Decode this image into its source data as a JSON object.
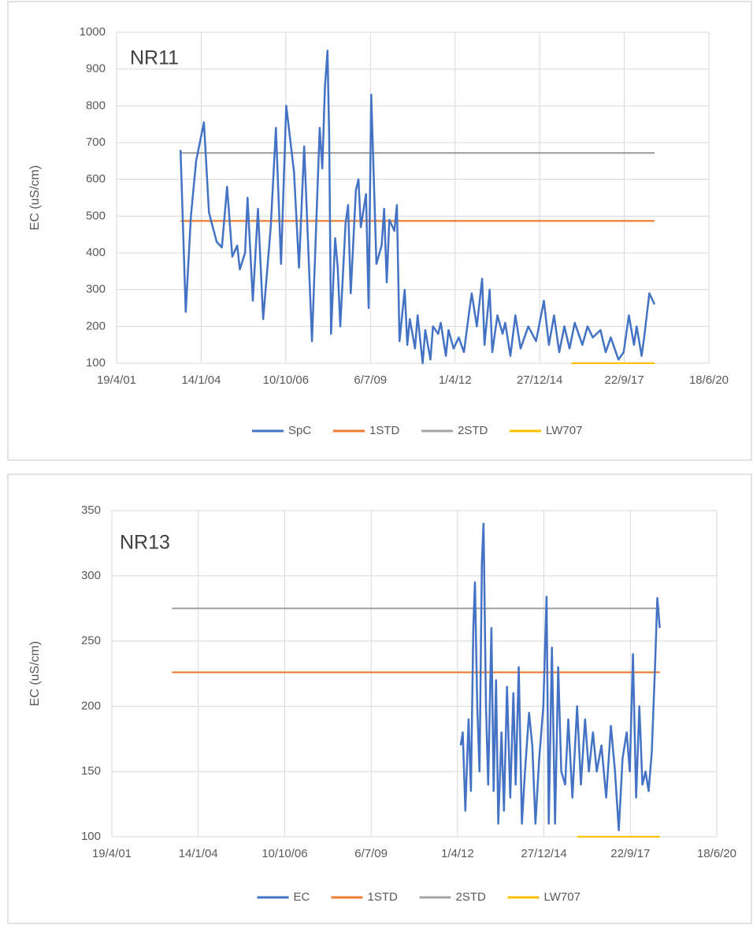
{
  "chart_data": [
    {
      "type": "line",
      "title": "NR11",
      "y_label": "EC (uS/cm)",
      "xlim": [
        "2001-04-19",
        "2020-06-18"
      ],
      "xticks": [
        {
          "value": "2001-04-19",
          "label": "19/4/01"
        },
        {
          "value": "2004-01-14",
          "label": "14/1/04"
        },
        {
          "value": "2006-10-10",
          "label": "10/10/06"
        },
        {
          "value": "2009-07-06",
          "label": "6/7/09"
        },
        {
          "value": "2012-04-01",
          "label": "1/4/12"
        },
        {
          "value": "2014-12-27",
          "label": "27/12/14"
        },
        {
          "value": "2017-09-22",
          "label": "22/9/17"
        },
        {
          "value": "2020-06-18",
          "label": "18/6/20"
        }
      ],
      "ylim": [
        100,
        1000
      ],
      "yticks": [
        100,
        200,
        300,
        400,
        500,
        600,
        700,
        800,
        900,
        1000
      ],
      "grid": true,
      "legend": "bottom",
      "series": [
        {
          "name": "SpC",
          "color": "#4472c4",
          "x": [
            "2003-05-15",
            "2003-07-15",
            "2003-09-15",
            "2003-11-15",
            "2004-02-15",
            "2004-04-15",
            "2004-07-15",
            "2004-09-15",
            "2004-11-15",
            "2005-01-15",
            "2005-03-15",
            "2005-04-15",
            "2005-06-15",
            "2005-07-15",
            "2005-09-15",
            "2005-11-15",
            "2006-01-15",
            "2006-04-15",
            "2006-06-15",
            "2006-08-15",
            "2006-10-15",
            "2007-01-15",
            "2007-03-15",
            "2007-05-15",
            "2007-08-15",
            "2007-11-15",
            "2007-12-15",
            "2008-01-15",
            "2008-02-15",
            "2008-03-05",
            "2008-03-28",
            "2008-05-15",
            "2008-06-15",
            "2008-07-15",
            "2008-09-15",
            "2008-10-15",
            "2008-11-15",
            "2009-01-15",
            "2009-02-15",
            "2009-03-15",
            "2009-05-15",
            "2009-06-15",
            "2009-07-15",
            "2009-09-15",
            "2009-11-15",
            "2009-12-15",
            "2010-01-15",
            "2010-02-15",
            "2010-04-15",
            "2010-05-15",
            "2010-06-15",
            "2010-08-15",
            "2010-09-15",
            "2010-10-15",
            "2010-12-15",
            "2011-01-15",
            "2011-03-15",
            "2011-04-15",
            "2011-06-15",
            "2011-07-15",
            "2011-09-15",
            "2011-10-15",
            "2011-12-15",
            "2012-01-15",
            "2012-03-15",
            "2012-05-15",
            "2012-07-15",
            "2012-09-15",
            "2012-10-15",
            "2012-12-15",
            "2013-02-15",
            "2013-03-15",
            "2013-05-15",
            "2013-06-15",
            "2013-08-15",
            "2013-10-15",
            "2013-11-15",
            "2014-01-15",
            "2014-03-15",
            "2014-05-15",
            "2014-08-15",
            "2014-11-15",
            "2015-02-15",
            "2015-04-15",
            "2015-06-15",
            "2015-08-15",
            "2015-10-15",
            "2015-12-15",
            "2016-02-15",
            "2016-05-15",
            "2016-07-15",
            "2016-09-15",
            "2016-12-15",
            "2017-02-15",
            "2017-04-15",
            "2017-07-15",
            "2017-09-15",
            "2017-11-15",
            "2018-01-15",
            "2018-02-15",
            "2018-04-15",
            "2018-05-15",
            "2018-07-15",
            "2018-09-15"
          ],
          "values": [
            680,
            240,
            500,
            650,
            755,
            510,
            430,
            415,
            580,
            390,
            420,
            355,
            400,
            550,
            270,
            520,
            220,
            470,
            740,
            370,
            800,
            620,
            360,
            690,
            160,
            740,
            630,
            850,
            950,
            720,
            180,
            440,
            360,
            200,
            480,
            530,
            290,
            570,
            600,
            470,
            560,
            250,
            830,
            370,
            420,
            520,
            320,
            490,
            460,
            530,
            160,
            300,
            150,
            220,
            140,
            230,
            100,
            190,
            110,
            200,
            180,
            210,
            120,
            190,
            140,
            170,
            130,
            240,
            290,
            200,
            330,
            150,
            300,
            130,
            230,
            180,
            210,
            120,
            230,
            140,
            200,
            160,
            270,
            150,
            230,
            130,
            200,
            140,
            210,
            150,
            200,
            170,
            190,
            130,
            170,
            110,
            130,
            230,
            150,
            200,
            120,
            170,
            290,
            260
          ]
        },
        {
          "name": "1STD",
          "color": "#ed7d31",
          "x": [
            "2003-05-15",
            "2018-09-15"
          ],
          "values": [
            487,
            487
          ]
        },
        {
          "name": "2STD",
          "color": "#a5a5a5",
          "x": [
            "2003-05-15",
            "2018-09-15"
          ],
          "values": [
            672,
            672
          ]
        },
        {
          "name": "LW707",
          "color": "#ffc000",
          "x": [
            "2016-01-08",
            "2018-09-15"
          ],
          "values": [
            100,
            100
          ]
        }
      ]
    },
    {
      "type": "line",
      "title": "NR13",
      "y_label": "EC (uS/cm)",
      "xlim": [
        "2001-04-19",
        "2020-06-18"
      ],
      "xticks": [
        {
          "value": "2001-04-19",
          "label": "19/4/01"
        },
        {
          "value": "2004-01-14",
          "label": "14/1/04"
        },
        {
          "value": "2006-10-10",
          "label": "10/10/06"
        },
        {
          "value": "2009-07-06",
          "label": "6/7/09"
        },
        {
          "value": "2012-04-01",
          "label": "1/4/12"
        },
        {
          "value": "2014-12-27",
          "label": "27/12/14"
        },
        {
          "value": "2017-09-22",
          "label": "22/9/17"
        },
        {
          "value": "2020-06-18",
          "label": "18/6/20"
        }
      ],
      "ylim": [
        100,
        350
      ],
      "yticks": [
        100,
        150,
        200,
        250,
        300,
        350
      ],
      "grid": true,
      "legend": "bottom",
      "series": [
        {
          "name": "EC",
          "color": "#4472c4",
          "x": [
            "2012-05-08",
            "2012-06-01",
            "2012-07-01",
            "2012-08-07",
            "2012-09-03",
            "2012-10-01",
            "2012-10-20",
            "2012-11-15",
            "2012-12-12",
            "2013-01-08",
            "2013-01-27",
            "2013-02-24",
            "2013-03-22",
            "2013-04-28",
            "2013-05-24",
            "2013-06-21",
            "2013-07-17",
            "2013-08-23",
            "2013-09-20",
            "2013-10-26",
            "2013-12-02",
            "2014-01-08",
            "2014-02-03",
            "2014-03-11",
            "2014-04-16",
            "2014-05-22",
            "2014-07-08",
            "2014-08-14",
            "2014-09-20",
            "2014-11-03",
            "2014-12-20",
            "2015-01-26",
            "2015-02-21",
            "2015-03-29",
            "2015-05-05",
            "2015-06-10",
            "2015-07-16",
            "2015-08-29",
            "2015-10-05",
            "2015-11-21",
            "2016-01-15",
            "2016-02-28",
            "2016-04-16",
            "2016-05-30",
            "2016-07-16",
            "2016-08-29",
            "2016-10-23",
            "2016-12-16",
            "2017-02-09",
            "2017-03-28",
            "2017-05-11",
            "2017-06-24",
            "2017-08-10",
            "2017-09-16",
            "2017-10-22",
            "2017-11-28",
            "2018-01-04",
            "2018-02-09",
            "2018-03-17",
            "2018-04-22",
            "2018-05-28",
            "2018-07-04",
            "2018-07-31",
            "2018-08-28"
          ],
          "values": [
            170,
            180,
            120,
            190,
            135,
            260,
            295,
            200,
            150,
            310,
            340,
            200,
            140,
            260,
            135,
            220,
            110,
            180,
            120,
            215,
            130,
            210,
            140,
            230,
            110,
            150,
            195,
            170,
            110,
            160,
            200,
            284,
            110,
            245,
            110,
            230,
            150,
            140,
            190,
            130,
            200,
            140,
            190,
            150,
            180,
            150,
            170,
            130,
            185,
            150,
            105,
            160,
            180,
            150,
            240,
            130,
            200,
            140,
            150,
            135,
            165,
            230,
            283,
            260
          ]
        },
        {
          "name": "1STD",
          "color": "#ed7d31",
          "x": [
            "2003-03-15",
            "2018-08-28"
          ],
          "values": [
            226,
            226
          ]
        },
        {
          "name": "2STD",
          "color": "#a5a5a5",
          "x": [
            "2003-03-15",
            "2018-08-28"
          ],
          "values": [
            275,
            275
          ]
        },
        {
          "name": "LW707",
          "color": "#ffc000",
          "x": [
            "2016-01-15",
            "2018-08-28"
          ],
          "values": [
            100,
            100
          ]
        }
      ]
    }
  ]
}
